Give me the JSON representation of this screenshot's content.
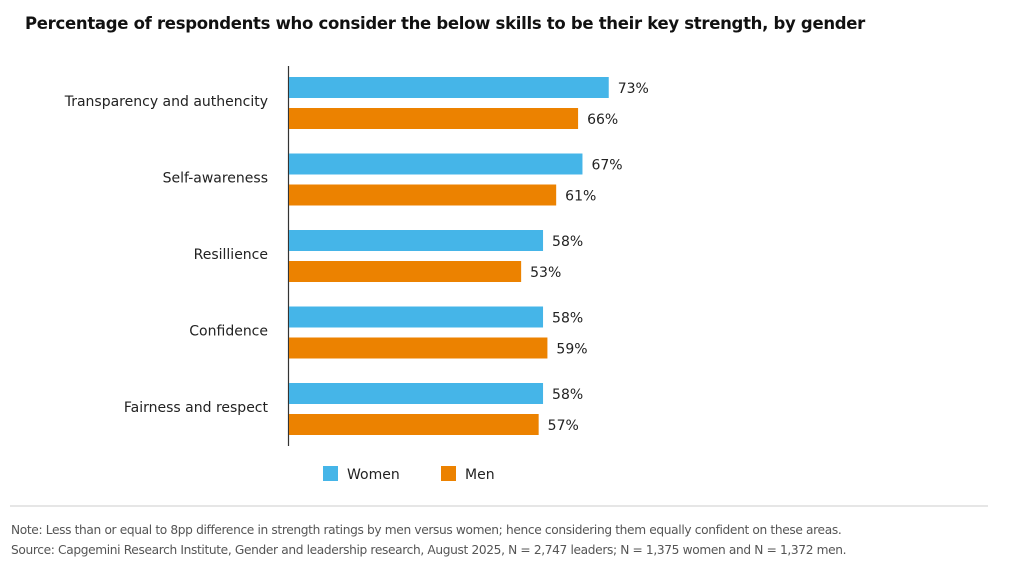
{
  "chart_data": {
    "type": "bar",
    "orientation": "horizontal",
    "title": "Percentage of respondents who consider the below skills to be their key strength, by gender",
    "xlabel": "",
    "ylabel": "",
    "xlim": [
      0,
      100
    ],
    "grid": false,
    "legend_position": "bottom",
    "categories": [
      "Transparency and authencity",
      "Self-awareness",
      "Resillience",
      "Confidence",
      "Fairness and respect"
    ],
    "series": [
      {
        "name": "Women",
        "color": "#45b5e8",
        "values": [
          73,
          67,
          58,
          58,
          58
        ],
        "labels": [
          "73%",
          "67%",
          "58%",
          "58%",
          "58%"
        ]
      },
      {
        "name": "Men",
        "color": "#ec8200",
        "values": [
          66,
          61,
          53,
          59,
          57
        ],
        "labels": [
          "66%",
          "61%",
          "53%",
          "59%",
          "57%"
        ]
      }
    ]
  },
  "footer": {
    "note": "Note: Less than or equal to 8pp difference in strength ratings by men versus women; hence considering them equally confident on these areas.",
    "source": "Source: Capgemini Research Institute, Gender and leadership research, August 2025, N = 2,747 leaders; N = 1,375 women and N = 1,372 men."
  }
}
